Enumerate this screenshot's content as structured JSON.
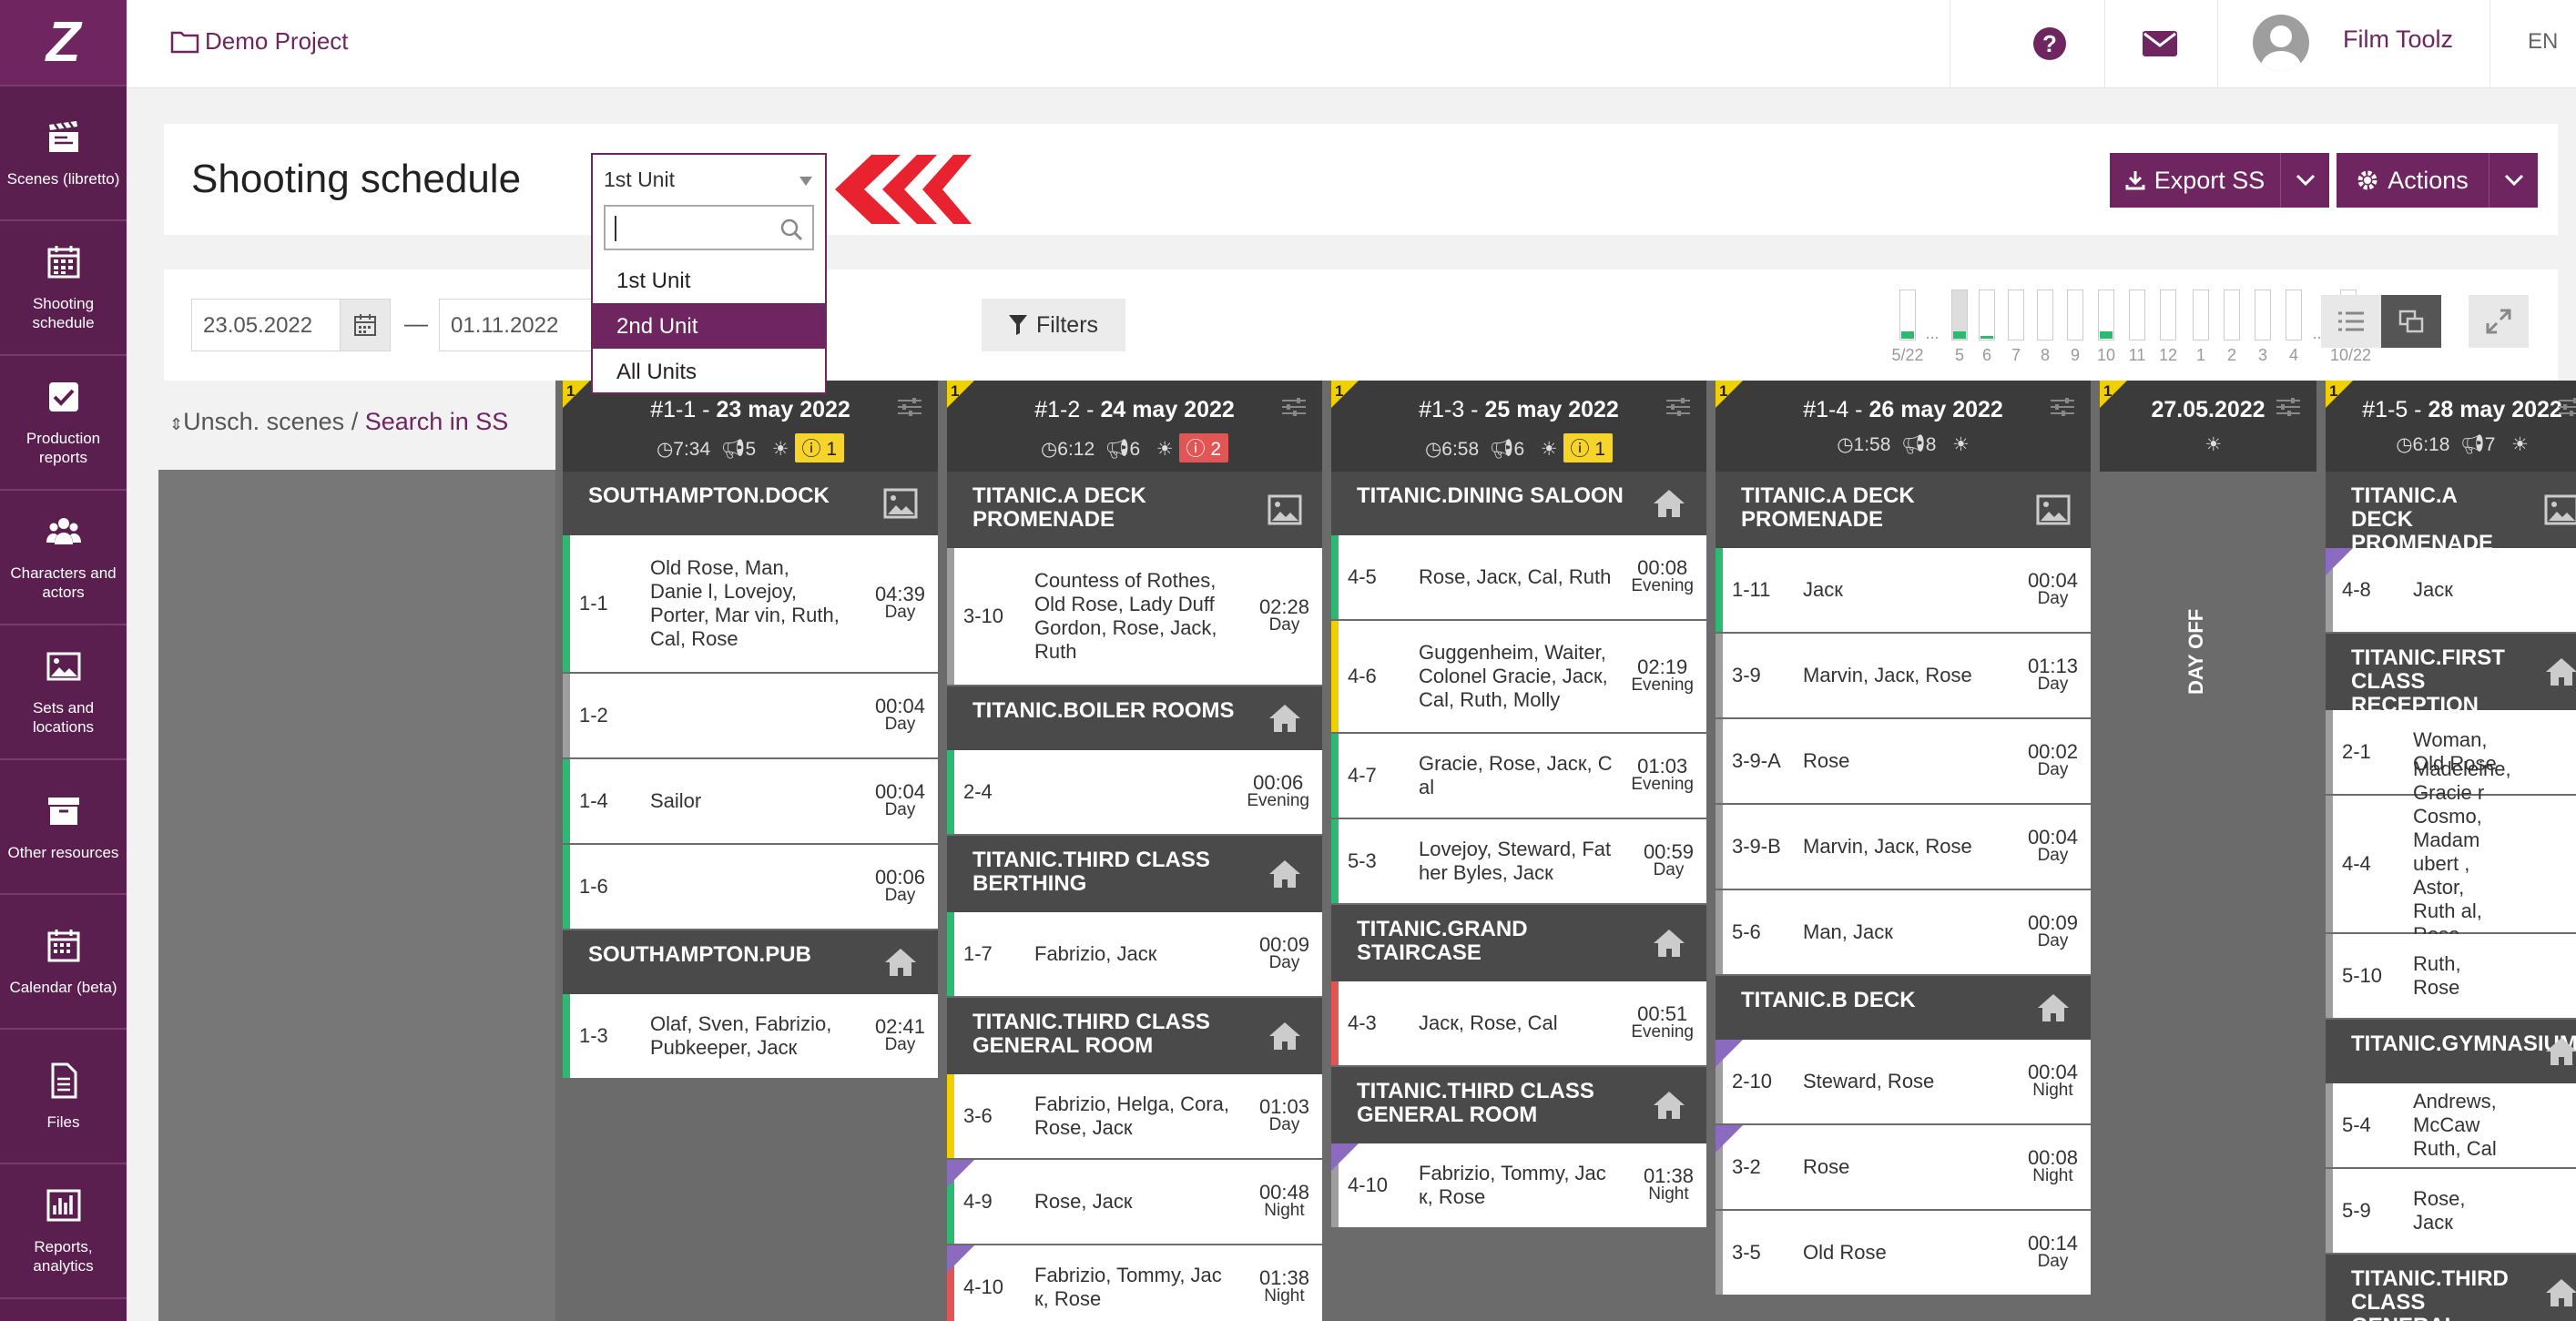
{
  "sidebar": {
    "logo": "Z",
    "items": [
      {
        "label": "Scenes (libretto)",
        "icon": "clapperboard-icon"
      },
      {
        "label": "Shooting schedule",
        "icon": "calendar-grid-icon"
      },
      {
        "label": "Production reports",
        "icon": "checkbox-icon"
      },
      {
        "label": "Characters and actors",
        "icon": "users-icon"
      },
      {
        "label": "Sets and locations",
        "icon": "image-icon"
      },
      {
        "label": "Other resources",
        "icon": "archive-icon"
      },
      {
        "label": "Calendar (beta)",
        "icon": "calendar-icon"
      },
      {
        "label": "Files",
        "icon": "file-icon"
      },
      {
        "label": "Reports, analytics",
        "icon": "bar-chart-icon"
      }
    ]
  },
  "header": {
    "project": "Demo Project",
    "help": "?",
    "user": "Film Toolz",
    "lang": "EN"
  },
  "titlebar": {
    "title": "Shooting schedule",
    "unit_selected": "1st Unit",
    "export_label": "Export SS",
    "actions_label": "Actions"
  },
  "unit_dropdown": {
    "search_value": "",
    "options": [
      "1st Unit",
      "2nd Unit",
      "All Units"
    ],
    "highlighted": "2nd Unit"
  },
  "filterbar": {
    "date_from": "23.05.2022",
    "date_sep": "—",
    "date_to": "01.11.2022",
    "filters_label": "Filters",
    "mini_days": [
      {
        "label": "5/22",
        "fill": 0.15
      },
      {
        "label": "...",
        "fill": 0
      },
      {
        "label": "5",
        "fill": 0.15
      },
      {
        "label": "6",
        "fill": 0.05
      },
      {
        "label": "7",
        "fill": 0
      },
      {
        "label": "8",
        "fill": 0
      },
      {
        "label": "9",
        "fill": 0
      },
      {
        "label": "10",
        "fill": 0.15
      },
      {
        "label": "11",
        "fill": 0
      },
      {
        "label": "12",
        "fill": 0
      },
      {
        "label": "1",
        "fill": 0
      },
      {
        "label": "2",
        "fill": 0
      },
      {
        "label": "3",
        "fill": 0
      },
      {
        "label": "4",
        "fill": 0
      },
      {
        "label": "...",
        "fill": 0
      },
      {
        "label": "10/22",
        "fill": 0.15
      }
    ]
  },
  "left_panel": {
    "unscheduled": "Unsch. scenes",
    "sep": " / ",
    "search_link": "Search in SS"
  },
  "colors": {
    "brand": "#6e2560",
    "green": "#2eb872",
    "yellow": "#f0d000",
    "red": "#e25555",
    "gray": "#9e9e9e",
    "purple": "#8a6bc0"
  },
  "days": [
    {
      "corner": "1",
      "code": "#1-1",
      "date": "23 may 2022",
      "time": "7:34",
      "count": "5",
      "badge": "1",
      "badge_color": "y",
      "blocks": [
        {
          "loc": "SOUTHAMPTON.DOCK",
          "icon": "image-icon",
          "scenes": [
            {
              "num": "1-1",
              "chars": "Old Rose, Man, Danie l, Lovejoy, Porter, Mar vin, Ruth, Cal, Rose",
              "dur": "04:39",
              "tod": "Day",
              "bar": "green"
            },
            {
              "num": "1-2",
              "chars": "",
              "dur": "00:04",
              "tod": "Day",
              "bar": "gray"
            },
            {
              "num": "1-4",
              "chars": "Sailor",
              "dur": "00:04",
              "tod": "Day",
              "bar": "green"
            },
            {
              "num": "1-6",
              "chars": "",
              "dur": "00:06",
              "tod": "Day",
              "bar": "green"
            }
          ]
        },
        {
          "loc": "SOUTHAMPTON.PUB",
          "icon": "home-icon",
          "scenes": [
            {
              "num": "1-3",
              "chars": "Olaf, Sven, Fabrizio, Pubkeeper, Jacк",
              "dur": "02:41",
              "tod": "Day",
              "bar": "green"
            }
          ]
        }
      ]
    },
    {
      "corner": "1",
      "code": "#1-2",
      "date": "24 may 2022",
      "time": "6:12",
      "count": "6",
      "badge": "2",
      "badge_color": "r",
      "blocks": [
        {
          "loc": "TITANIC.A DECK PROMENADE",
          "icon": "image-icon",
          "scenes": [
            {
              "num": "3-10",
              "chars": "Countess of Rothes, Old Rose, Lady Duff Gordon, Rose, Jack, Ruth",
              "dur": "02:28",
              "tod": "Day",
              "bar": "gray"
            }
          ]
        },
        {
          "loc": "TITANIC.BOILER ROOMS",
          "icon": "home-icon",
          "scenes": [
            {
              "num": "2-4",
              "chars": "",
              "dur": "00:06",
              "tod": "Evening",
              "bar": "green"
            }
          ]
        },
        {
          "loc": "TITANIC.THIRD CLASS BERTHING",
          "icon": "home-icon",
          "scenes": [
            {
              "num": "1-7",
              "chars": "Fabrizio, Jacк",
              "dur": "00:09",
              "tod": "Day",
              "bar": "green"
            }
          ]
        },
        {
          "loc": "TITANIC.THIRD CLASS GENERAL ROOM",
          "icon": "home-icon",
          "scenes": [
            {
              "num": "3-6",
              "chars": "Fabrizio, Helga, Cora, Rose, Jacк",
              "dur": "01:03",
              "tod": "Day",
              "bar": "yellow"
            },
            {
              "num": "4-9",
              "chars": "Rose, Jacк",
              "dur": "00:48",
              "tod": "Night",
              "bar": "green",
              "corner": true
            },
            {
              "num": "4-10",
              "chars": "Fabrizio, Tommy, Jac к, Rose",
              "dur": "01:38",
              "tod": "Night",
              "bar": "red",
              "corner": true
            }
          ]
        }
      ]
    },
    {
      "corner": "1",
      "code": "#1-3",
      "date": "25 may 2022",
      "time": "6:58",
      "count": "6",
      "badge": "1",
      "badge_color": "y",
      "blocks": [
        {
          "loc": "TITANIC.DINING SALOON",
          "icon": "home-icon",
          "scenes": [
            {
              "num": "4-5",
              "chars": "Rose, Jacк, Cal, Ruth",
              "dur": "00:08",
              "tod": "Evening",
              "bar": "green"
            },
            {
              "num": "4-6",
              "chars": "Guggenheim, Waiter, Colonel Gracie, Jacк, Cal, Ruth, Molly",
              "dur": "02:19",
              "tod": "Evening",
              "bar": "yellow"
            },
            {
              "num": "4-7",
              "chars": "Gracie, Rose, Jacк, C al",
              "dur": "01:03",
              "tod": "Evening",
              "bar": "green"
            },
            {
              "num": "5-3",
              "chars": "Lovejoy, Steward, Fat her Byles, Jacк",
              "dur": "00:59",
              "tod": "Day",
              "bar": "green"
            }
          ]
        },
        {
          "loc": "TITANIC.GRAND STAIRCASE",
          "icon": "home-icon",
          "scenes": [
            {
              "num": "4-3",
              "chars": "Jacк, Rose, Cal",
              "dur": "00:51",
              "tod": "Evening",
              "bar": "red"
            }
          ]
        },
        {
          "loc": "TITANIC.THIRD CLASS GENERAL ROOM",
          "icon": "home-icon",
          "scenes": [
            {
              "num": "4-10",
              "chars": "Fabrizio, Tommy, Jac к, Rose",
              "dur": "01:38",
              "tod": "Night",
              "bar": "gray",
              "corner": true
            }
          ]
        }
      ]
    },
    {
      "corner": "1",
      "code": "#1-4",
      "date": "26 may 2022",
      "time": "1:58",
      "count": "8",
      "badge": "",
      "badge_color": "",
      "blocks": [
        {
          "loc": "TITANIC.A DECK PROMENADE",
          "icon": "image-icon",
          "scenes": [
            {
              "num": "1-11",
              "chars": "Jacк",
              "dur": "00:04",
              "tod": "Day",
              "bar": "green"
            },
            {
              "num": "3-9",
              "chars": "Marvin, Jacк, Rose",
              "dur": "01:13",
              "tod": "Day",
              "bar": "gray"
            },
            {
              "num": "3-9-A",
              "chars": "Rose",
              "dur": "00:02",
              "tod": "Day",
              "bar": "gray"
            },
            {
              "num": "3-9-B",
              "chars": "Marvin, Jacк, Rose",
              "dur": "00:04",
              "tod": "Day",
              "bar": "gray"
            },
            {
              "num": "5-6",
              "chars": "Man, Jacк",
              "dur": "00:09",
              "tod": "Day",
              "bar": "gray"
            }
          ]
        },
        {
          "loc": "TITANIC.B DECK",
          "icon": "home-icon",
          "scenes": [
            {
              "num": "2-10",
              "chars": "Steward, Rose",
              "dur": "00:04",
              "tod": "Night",
              "bar": "gray",
              "corner": true
            },
            {
              "num": "3-2",
              "chars": "Rose",
              "dur": "00:08",
              "tod": "Night",
              "bar": "gray",
              "corner": true
            },
            {
              "num": "3-5",
              "chars": "Old Rose",
              "dur": "00:14",
              "tod": "Day",
              "bar": "gray"
            }
          ]
        }
      ]
    },
    {
      "corner": "1",
      "code": "",
      "date": "27.05.2022",
      "time": "",
      "count": "",
      "badge": "",
      "badge_color": "",
      "dayoff": "DAY OFF",
      "blocks": []
    },
    {
      "corner": "1",
      "code": "#1-5",
      "date": "28 may 2022",
      "time": "6:18",
      "count": "7",
      "badge": "",
      "badge_color": "",
      "blocks": [
        {
          "loc": "TITANIC.A DECK PROMENADE",
          "icon": "image-icon",
          "scenes": [
            {
              "num": "4-8",
              "chars": "Jacк",
              "dur": "",
              "tod": "",
              "bar": "gray",
              "corner": true
            }
          ]
        },
        {
          "loc": "TITANIC.FIRST CLASS RECEPTION",
          "icon": "home-icon",
          "scenes": [
            {
              "num": "2-1",
              "chars": "Woman, Old Rose",
              "dur": "",
              "tod": "",
              "bar": "gray"
            },
            {
              "num": "4-4",
              "chars": "Madeleine, Gracie r Cosmo, Madam ubert , Astor, Ruth al, Rose, Jacк, Mo",
              "dur": "",
              "tod": "",
              "bar": "gray"
            },
            {
              "num": "5-10",
              "chars": "Ruth, Rose",
              "dur": "",
              "tod": "",
              "bar": "gray"
            }
          ]
        },
        {
          "loc": "TITANIC.GYMNASIUM",
          "icon": "home-icon",
          "scenes": [
            {
              "num": "5-4",
              "chars": "Andrews, McCaw Ruth, Cal",
              "dur": "",
              "tod": "",
              "bar": "gray"
            },
            {
              "num": "5-9",
              "chars": "Rose, Jacк",
              "dur": "",
              "tod": "",
              "bar": "gray"
            }
          ]
        },
        {
          "loc": "TITANIC.THIRD CLASS GENERAL ROOM",
          "icon": "home-icon",
          "scenes": []
        }
      ]
    }
  ]
}
